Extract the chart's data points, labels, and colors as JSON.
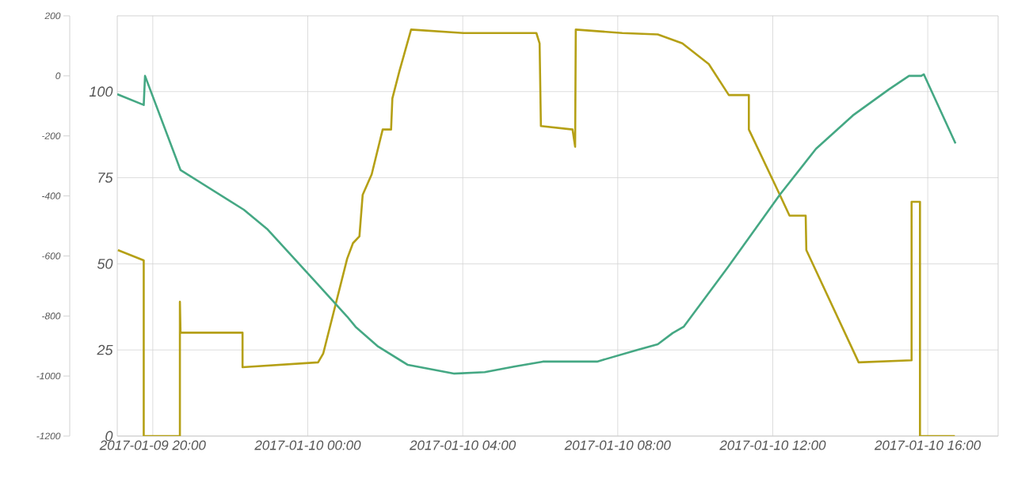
{
  "chart_data": {
    "type": "line",
    "xlim": [
      "2017-01-09T19:05",
      "2017-01-10T17:49"
    ],
    "xticks": [
      {
        "value": "2017-01-09T20:00",
        "label": "2017-01-09 20:00"
      },
      {
        "value": "2017-01-10T00:00",
        "label": "2017-01-10 00:00"
      },
      {
        "value": "2017-01-10T04:00",
        "label": "2017-01-10 04:00"
      },
      {
        "value": "2017-01-10T08:00",
        "label": "2017-01-10 08:00"
      },
      {
        "value": "2017-01-10T12:00",
        "label": "2017-01-10 12:00"
      },
      {
        "value": "2017-01-10T16:00",
        "label": "2017-01-10 16:00"
      }
    ],
    "ylim": [
      0,
      122
    ],
    "yticks": [
      0,
      25,
      50,
      75,
      100
    ],
    "y2lim": [
      -1200,
      200
    ],
    "y2ticks": [
      -1200,
      -1000,
      -800,
      -600,
      -400,
      -200,
      0,
      200
    ],
    "grid": true,
    "series": [
      {
        "color": "#b5a016",
        "x": [
          "2017-01-09T19:06",
          "2017-01-09T19:46",
          "2017-01-09T19:46",
          "2017-01-09T20:42",
          "2017-01-09T20:42",
          "2017-01-09T20:43",
          "2017-01-09T22:19",
          "2017-01-09T22:19",
          "2017-01-10T00:16",
          "2017-01-10T00:24",
          "2017-01-10T01:01",
          "2017-01-10T01:10",
          "2017-01-10T01:20",
          "2017-01-10T01:25",
          "2017-01-10T01:39",
          "2017-01-10T01:56",
          "2017-01-10T02:09",
          "2017-01-10T02:11",
          "2017-01-10T02:22",
          "2017-01-10T02:40",
          "2017-01-10T04:01",
          "2017-01-10T05:54",
          "2017-01-10T05:59",
          "2017-01-10T06:01",
          "2017-01-10T06:50",
          "2017-01-10T06:54",
          "2017-01-10T06:55",
          "2017-01-10T08:07",
          "2017-01-10T09:02",
          "2017-01-10T09:40",
          "2017-01-10T10:21",
          "2017-01-10T10:52",
          "2017-01-10T11:23",
          "2017-01-10T11:23",
          "2017-01-10T12:11",
          "2017-01-10T12:26",
          "2017-01-10T12:51",
          "2017-01-10T12:52",
          "2017-01-10T14:13",
          "2017-01-10T15:35",
          "2017-01-10T15:35",
          "2017-01-10T15:48",
          "2017-01-10T15:48",
          "2017-01-10T16:42"
        ],
        "values": [
          54,
          51,
          0,
          0,
          39,
          30,
          30,
          20,
          21.4,
          24,
          51.5,
          56,
          58,
          70,
          76,
          89,
          89,
          98,
          106,
          118,
          117,
          117,
          114,
          90,
          89,
          84,
          118,
          117,
          116.6,
          114,
          108,
          99,
          99,
          89,
          70,
          64,
          64,
          54,
          21.4,
          22,
          68,
          68,
          0,
          0
        ]
      },
      {
        "color": "#45a884",
        "axis": "y2",
        "x": [
          "2017-01-09T19:05",
          "2017-01-09T19:46",
          "2017-01-09T19:48",
          "2017-01-09T20:43",
          "2017-01-09T22:21",
          "2017-01-09T22:58",
          "2017-01-10T00:14",
          "2017-01-10T01:01",
          "2017-01-10T01:14",
          "2017-01-10T01:49",
          "2017-01-10T02:35",
          "2017-01-10T03:46",
          "2017-01-10T04:34",
          "2017-01-10T05:21",
          "2017-01-10T06:04",
          "2017-01-10T07:28",
          "2017-01-10T08:30",
          "2017-01-10T09:02",
          "2017-01-10T09:25",
          "2017-01-10T09:42",
          "2017-01-10T10:50",
          "2017-01-10T12:11",
          "2017-01-10T13:07",
          "2017-01-10T14:04",
          "2017-01-10T15:00",
          "2017-01-10T15:31",
          "2017-01-10T15:50",
          "2017-01-10T15:54",
          "2017-01-10T16:43"
        ],
        "values": [
          -61,
          -97,
          0,
          -314,
          -446,
          -512,
          -691,
          -802,
          -836,
          -902,
          -963,
          -992,
          -987,
          -968,
          -952,
          -952,
          -913,
          -894,
          -857,
          -836,
          -639,
          -396,
          -243,
          -132,
          -45,
          0,
          0,
          5,
          -225
        ]
      }
    ]
  }
}
